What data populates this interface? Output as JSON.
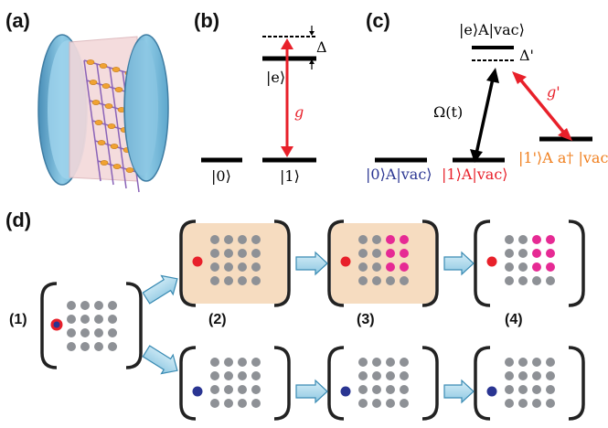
{
  "panels": {
    "a": "(a)",
    "b": "(b)",
    "c": "(c)",
    "d": "(d)"
  },
  "b": {
    "ket_e": "|e⟩",
    "delta": "Δ",
    "ket_0": "|0⟩",
    "ket_1": "|1⟩",
    "g": "g"
  },
  "c": {
    "e_vac": "|e⟩A|vac⟩",
    "delta_prime": "Δ'",
    "omega": "Ω(t)",
    "g_prime": "g'",
    "zero_vac": "|0⟩A|vac⟩",
    "one_vac": "|1⟩A|vac⟩",
    "one_prime": "|1'⟩A a† |vac⟩"
  },
  "d": {
    "steps": [
      "(1)",
      "(2)",
      "(3)",
      "(4)"
    ]
  },
  "colors": {
    "red": "#e8202a",
    "blue": "#2a3592",
    "magenta": "#e62a94",
    "orange": "#f07f1e",
    "gray_dot": "#8e9196",
    "cavity_fill": "#f6dcc0",
    "arrow_fill": "#a9d6ea",
    "mirror": "#7cbede"
  }
}
